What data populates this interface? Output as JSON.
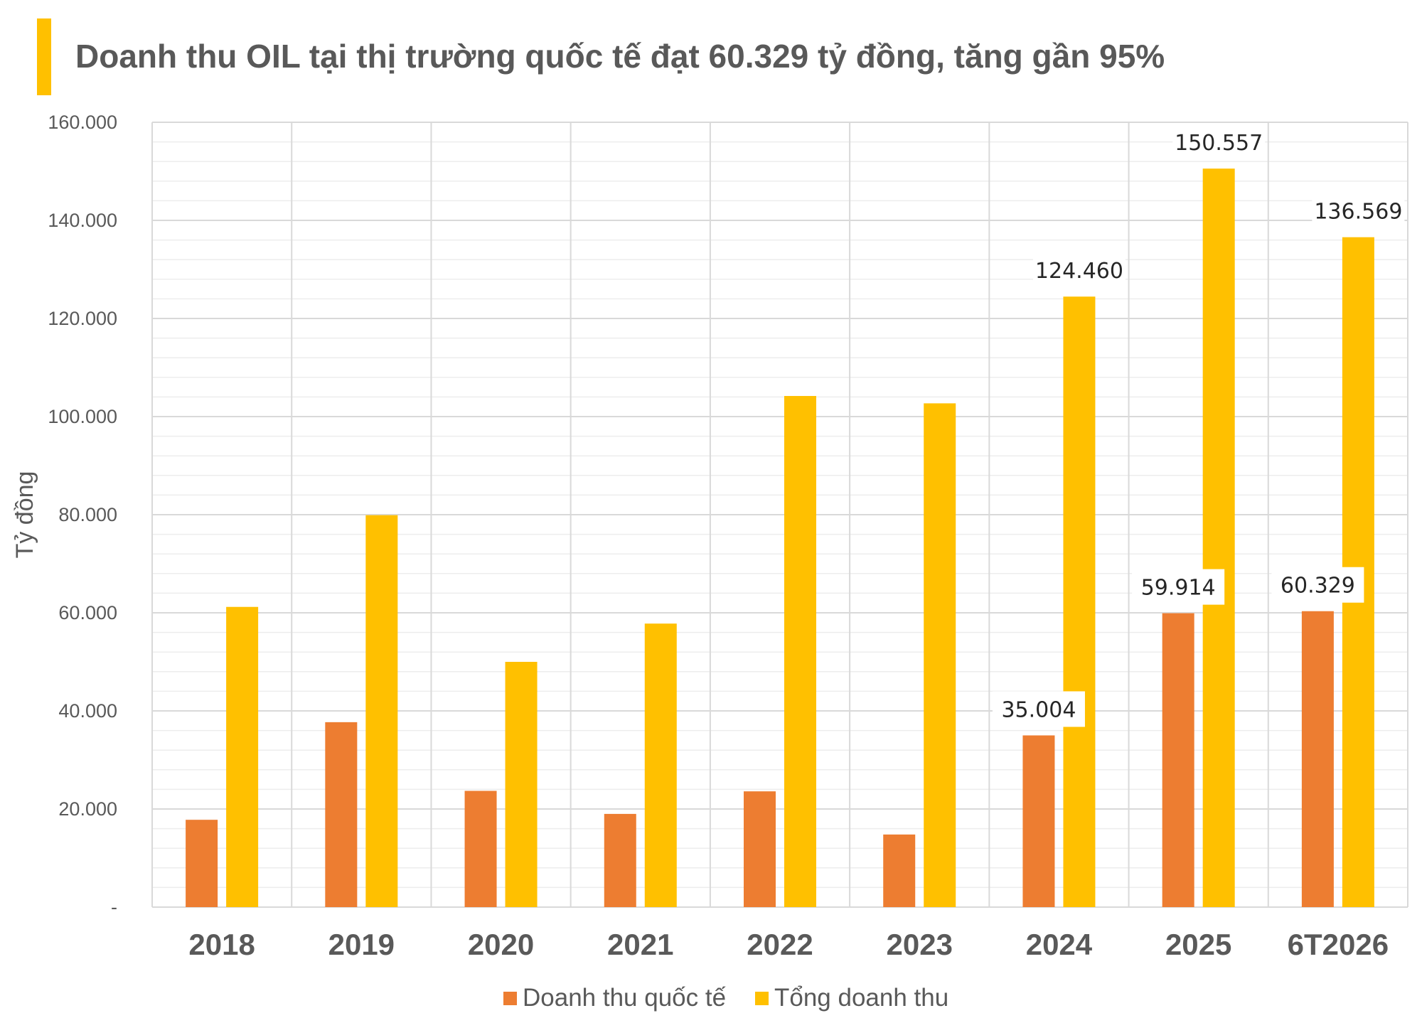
{
  "title": "Doanh thu OIL tại thị trường quốc tế đạt 60.329 tỷ đồng, tăng gần 95%",
  "colors": {
    "accent": "#FFC000",
    "international": "#ED7D31",
    "total": "#FFC000",
    "grid": "#D9D9D9",
    "text": "#595959"
  },
  "chart_data": {
    "type": "bar",
    "categories": [
      "2018",
      "2019",
      "2020",
      "2021",
      "2022",
      "2023",
      "2024",
      "2025",
      "6T2026"
    ],
    "series": [
      {
        "name": "Doanh thu quốc tế",
        "values": [
          17800,
          37700,
          23700,
          19000,
          23600,
          14800,
          35004,
          59914,
          60329
        ],
        "labels": [
          "",
          "",
          "",
          "",
          "",
          "",
          "35.004",
          "59.914",
          "60.329"
        ]
      },
      {
        "name": "Tổng doanh thu",
        "values": [
          61200,
          79900,
          50000,
          57800,
          104200,
          102700,
          124460,
          150557,
          136569
        ],
        "labels": [
          "",
          "",
          "",
          "",
          "",
          "",
          "124.460",
          "150.557",
          "136.569"
        ]
      }
    ],
    "ylabel": "Tỷ đồng",
    "ylim": [
      0,
      160000
    ],
    "ytick_values": [
      0,
      20000,
      40000,
      60000,
      80000,
      100000,
      120000,
      140000,
      160000
    ],
    "ytick_labels": [
      "-",
      "20.000",
      "40.000",
      "60.000",
      "80.000",
      "100.000",
      "120.000",
      "140.000",
      "160.000"
    ],
    "grid": true,
    "legend_position": "bottom"
  }
}
